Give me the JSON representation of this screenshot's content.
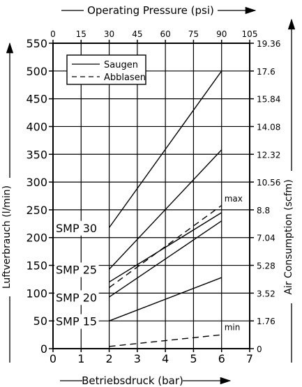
{
  "chart_data": {
    "type": "line",
    "top_axis": {
      "label": "Operating Pressure (psi)",
      "ticks": [
        "0",
        "15",
        "30",
        "45",
        "60",
        "75",
        "90",
        "105"
      ]
    },
    "bottom_axis": {
      "label": "Betriebsdruck (bar)",
      "ticks": [
        "0",
        "1",
        "2",
        "3",
        "4",
        "5",
        "6",
        "7"
      ],
      "xlim": [
        0,
        7
      ]
    },
    "left_axis": {
      "label": "Luftverbrauch (l/min)",
      "ticks": [
        "0",
        "50",
        "100",
        "150",
        "200",
        "250",
        "300",
        "350",
        "400",
        "450",
        "500",
        "550"
      ],
      "ylim": [
        0,
        550
      ]
    },
    "right_axis": {
      "label": "Air Consumption (scfm)",
      "ticks": [
        "0",
        "1.76",
        "3.52",
        "5.28",
        "7.04",
        "8.8",
        "10.56",
        "12.32",
        "14.08",
        "15.84",
        "17.6",
        "19.36"
      ]
    },
    "legend": {
      "position": "top-left",
      "entries": [
        {
          "label": "Saugen",
          "style": "solid"
        },
        {
          "label": "Abblasen",
          "style": "dashed"
        }
      ]
    },
    "grid": true,
    "series": [
      {
        "label": "SMP 30",
        "style": "solid",
        "x": [
          2,
          6
        ],
        "y": [
          218,
          500
        ]
      },
      {
        "label": "SMP 25",
        "style": "solid",
        "x": [
          2,
          6
        ],
        "y": [
          143,
          358
        ]
      },
      {
        "label": "SMP 20",
        "style": "solid",
        "x": [
          2,
          6
        ],
        "y": [
          93,
          230
        ]
      },
      {
        "label": "SMP 15",
        "style": "solid",
        "x": [
          2,
          6
        ],
        "y": [
          50,
          128
        ]
      },
      {
        "label": "max",
        "style": "dashed",
        "x": [
          2,
          6
        ],
        "y": [
          110,
          258
        ]
      },
      {
        "label": "min",
        "style": "dashed",
        "x": [
          2,
          6
        ],
        "y": [
          4,
          25
        ]
      }
    ],
    "extra_solid_line": {
      "x": [
        2,
        6
      ],
      "y": [
        120,
        245
      ]
    },
    "series_labels": [
      {
        "text": "SMP 30",
        "x": 0.1,
        "y": 210
      },
      {
        "text": "SMP 25",
        "x": 0.1,
        "y": 135
      },
      {
        "text": "SMP 20",
        "x": 0.1,
        "y": 85
      },
      {
        "text": "SMP 15",
        "x": 0.1,
        "y": 42
      },
      {
        "text": "max",
        "x": 6.1,
        "y": 265
      },
      {
        "text": "min",
        "x": 6.1,
        "y": 33
      }
    ]
  }
}
